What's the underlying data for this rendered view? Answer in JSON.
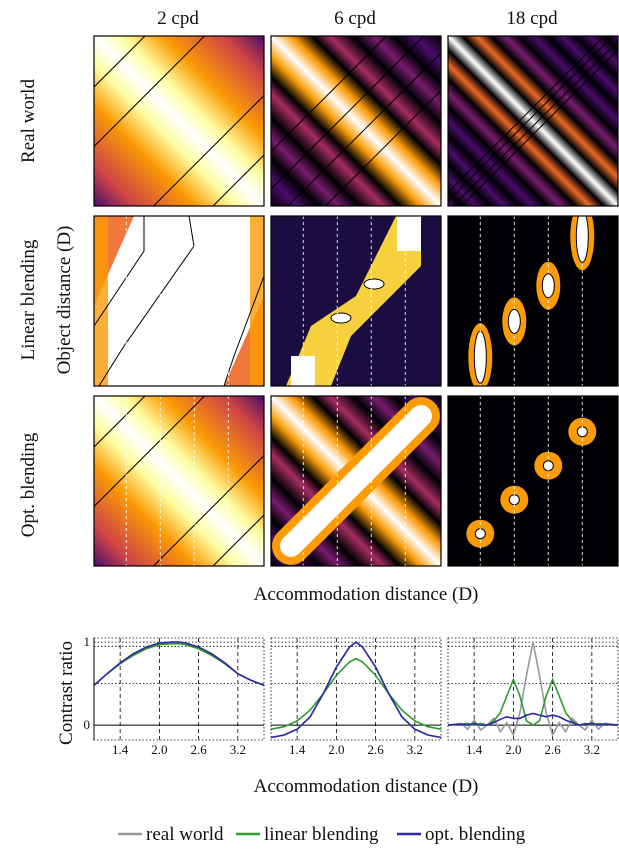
{
  "heatmaps": {
    "column_titles": [
      "2 cpd",
      "6 cpd",
      "18 cpd"
    ],
    "row_titles": [
      "Real world",
      "Linear blending",
      "Opt. blending"
    ],
    "ylabel": "Object distance (D)",
    "xlabel": "Accommodation distance (D)",
    "colormap": [
      "#000004",
      "#1b0c41",
      "#4a0c6b",
      "#781c6d",
      "#a52c60",
      "#cf4446",
      "#ed6925",
      "#fb9b06",
      "#f7d13d",
      "#fcffa4",
      "#ffffff"
    ],
    "contour_color": "#000000",
    "focal_plane_line_color": "#ffffff"
  },
  "chart_data": {
    "type": "line",
    "ylabel": "Contrast ratio",
    "xlabel": "Accommodation distance (D)",
    "x_tick_labels": [
      "1.4",
      "2.0",
      "2.6",
      "3.2"
    ],
    "x_ticks": [
      1.4,
      2.0,
      2.6,
      3.2
    ],
    "y_tick_labels": [
      "0",
      "1"
    ],
    "y_ticks": [
      0,
      1
    ],
    "xlim": [
      1.0,
      3.6
    ],
    "ylim": [
      -0.18,
      1.05
    ],
    "panels": [
      {
        "title": "2 cpd",
        "x": [
          1.0,
          1.2,
          1.4,
          1.6,
          1.8,
          2.0,
          2.2,
          2.3,
          2.4,
          2.6,
          2.8,
          3.0,
          3.2,
          3.4,
          3.6
        ],
        "series": [
          {
            "name": "real world",
            "color": "#999999",
            "values": [
              0.48,
              0.62,
              0.75,
              0.86,
              0.94,
              0.99,
              1.0,
              1.0,
              0.99,
              0.94,
              0.86,
              0.75,
              0.62,
              0.54,
              0.48
            ]
          },
          {
            "name": "linear blending",
            "color": "#2e9b2e",
            "values": [
              0.48,
              0.62,
              0.74,
              0.84,
              0.92,
              0.97,
              0.98,
              0.98,
              0.97,
              0.92,
              0.84,
              0.74,
              0.62,
              0.54,
              0.48
            ]
          },
          {
            "name": "opt. blending",
            "color": "#2a2aa8",
            "values": [
              0.48,
              0.62,
              0.75,
              0.86,
              0.94,
              0.99,
              1.0,
              1.0,
              0.99,
              0.94,
              0.86,
              0.75,
              0.62,
              0.54,
              0.48
            ]
          }
        ]
      },
      {
        "title": "6 cpd",
        "x": [
          1.0,
          1.2,
          1.4,
          1.6,
          1.8,
          2.0,
          2.2,
          2.3,
          2.4,
          2.6,
          2.8,
          3.0,
          3.2,
          3.4,
          3.6
        ],
        "series": [
          {
            "name": "real world",
            "color": "#999999",
            "values": [
              -0.15,
              -0.12,
              -0.05,
              0.1,
              0.38,
              0.7,
              0.94,
              1.0,
              0.94,
              0.7,
              0.38,
              0.1,
              -0.05,
              -0.12,
              -0.15
            ]
          },
          {
            "name": "linear blending",
            "color": "#2e9b2e",
            "values": [
              -0.05,
              -0.02,
              0.05,
              0.18,
              0.38,
              0.6,
              0.76,
              0.8,
              0.76,
              0.6,
              0.38,
              0.18,
              0.05,
              -0.02,
              -0.05
            ]
          },
          {
            "name": "opt. blending",
            "color": "#2a2aa8",
            "values": [
              -0.15,
              -0.12,
              -0.05,
              0.1,
              0.38,
              0.7,
              0.94,
              1.0,
              0.94,
              0.7,
              0.38,
              0.1,
              -0.05,
              -0.12,
              -0.15
            ]
          }
        ]
      },
      {
        "title": "18 cpd",
        "x": [
          1.0,
          1.2,
          1.3,
          1.4,
          1.5,
          1.6,
          1.7,
          1.8,
          1.9,
          2.0,
          2.1,
          2.2,
          2.3,
          2.4,
          2.5,
          2.6,
          2.7,
          2.8,
          2.9,
          3.0,
          3.1,
          3.2,
          3.3,
          3.4,
          3.6
        ],
        "series": [
          {
            "name": "real world",
            "color": "#999999",
            "values": [
              0.0,
              0.02,
              -0.05,
              0.06,
              -0.06,
              0.0,
              0.08,
              -0.08,
              0.03,
              -0.12,
              0.15,
              0.6,
              1.0,
              0.6,
              0.15,
              -0.12,
              0.03,
              -0.08,
              0.08,
              0.0,
              -0.06,
              0.06,
              -0.05,
              0.02,
              0.0
            ]
          },
          {
            "name": "linear blending",
            "color": "#2e9b2e",
            "values": [
              0.0,
              0.01,
              0.02,
              0.0,
              0.02,
              0.0,
              0.05,
              0.15,
              0.35,
              0.55,
              0.35,
              0.05,
              0.0,
              0.05,
              0.35,
              0.55,
              0.35,
              0.15,
              0.05,
              0.0,
              0.02,
              0.0,
              0.02,
              0.01,
              0.0
            ]
          },
          {
            "name": "opt. blending",
            "color": "#2a2aa8",
            "values": [
              0.0,
              0.01,
              0.0,
              0.02,
              0.0,
              0.0,
              0.03,
              0.07,
              0.1,
              0.08,
              0.08,
              0.12,
              0.14,
              0.12,
              0.1,
              0.12,
              0.1,
              0.06,
              0.03,
              0.0,
              0.01,
              0.02,
              0.0,
              0.01,
              0.0
            ]
          }
        ]
      }
    ],
    "legend": {
      "placement": "bottom-right",
      "items": [
        {
          "label": "real world",
          "color": "#999999"
        },
        {
          "label": "linear blending",
          "color": "#2e9b2e"
        },
        {
          "label": "opt. blending",
          "color": "#2a2aa8"
        }
      ]
    }
  }
}
